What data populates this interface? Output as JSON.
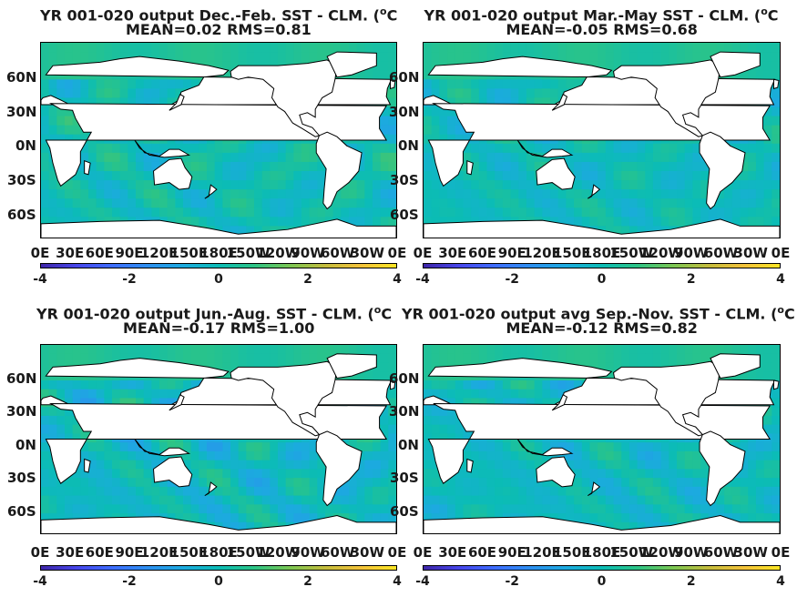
{
  "colormap": [
    "#3e26a8",
    "#4746eb",
    "#3e6dff",
    "#2d8ff0",
    "#1caadf",
    "#0bbcb6",
    "#2cc486",
    "#7ac653",
    "#c4bc3d",
    "#f3c23a",
    "#fae524"
  ],
  "land_color": "#ffffff",
  "chart_data": [
    {
      "type": "heatmap",
      "title_line1": "YR 001-020 output  Dec.-Feb. SST - CLM. (",
      "title_unit": "oC",
      "title_line2": "MEAN=0.02   RMS=0.81",
      "mean": 0.02,
      "rms": 0.81,
      "lat_ticks": [
        "60N",
        "30N",
        "0N",
        "30S",
        "60S"
      ],
      "lat_values": [
        60,
        30,
        0,
        -30,
        -60
      ],
      "lon_ticks": [
        "0E",
        "30E",
        "60E",
        "90E",
        "120E",
        "150E",
        "180E",
        "150W",
        "120W",
        "90W",
        "60W",
        "30W",
        "0E"
      ],
      "xlim": [
        0,
        360
      ],
      "ylim": [
        -80,
        90
      ],
      "clim": [
        -4,
        4
      ],
      "colorbar_ticks": [
        "-4",
        "-2",
        "0",
        "2",
        "4"
      ]
    },
    {
      "type": "heatmap",
      "title_line1": "YR 001-020 output Mar.-May SST - CLM. (",
      "title_unit": "oC",
      "title_line2": "MEAN=-0.05   RMS=0.68",
      "mean": -0.05,
      "rms": 0.68,
      "lat_ticks": [
        "60N",
        "30N",
        "0N",
        "30S",
        "60S"
      ],
      "lat_values": [
        60,
        30,
        0,
        -30,
        -60
      ],
      "lon_ticks": [
        "0E",
        "30E",
        "60E",
        "90E",
        "120E",
        "150E",
        "180E",
        "150W",
        "120W",
        "90W",
        "60W",
        "30W",
        "0E"
      ],
      "xlim": [
        0,
        360
      ],
      "ylim": [
        -80,
        90
      ],
      "clim": [
        -4,
        4
      ],
      "colorbar_ticks": [
        "-4",
        "-2",
        "0",
        "2",
        "4"
      ]
    },
    {
      "type": "heatmap",
      "title_line1": "YR 001-020 output Jun.-Aug. SST - CLM. (",
      "title_unit": "oC",
      "title_line2": "MEAN=-0.17   RMS=1.00",
      "mean": -0.17,
      "rms": 1.0,
      "lat_ticks": [
        "60N",
        "30N",
        "0N",
        "30S",
        "60S"
      ],
      "lat_values": [
        60,
        30,
        0,
        -30,
        -60
      ],
      "lon_ticks": [
        "0E",
        "30E",
        "60E",
        "90E",
        "120E",
        "150E",
        "180E",
        "150W",
        "120W",
        "90W",
        "60W",
        "30W",
        "0E"
      ],
      "xlim": [
        0,
        360
      ],
      "ylim": [
        -80,
        90
      ],
      "clim": [
        -4,
        4
      ],
      "colorbar_ticks": [
        "-4",
        "-2",
        "0",
        "2",
        "4"
      ]
    },
    {
      "type": "heatmap",
      "title_line1": "YR 001-020 output avg Sep.-Nov. SST - CLM. (",
      "title_unit": "oC",
      "title_line2": "MEAN=-0.12   RMS=0.82",
      "mean": -0.12,
      "rms": 0.82,
      "lat_ticks": [
        "60N",
        "30N",
        "0N",
        "30S",
        "60S"
      ],
      "lat_values": [
        60,
        30,
        0,
        -30,
        -60
      ],
      "lon_ticks": [
        "0E",
        "30E",
        "60E",
        "90E",
        "120E",
        "150E",
        "180E",
        "150W",
        "120W",
        "90W",
        "60W",
        "30W",
        "0E"
      ],
      "xlim": [
        0,
        360
      ],
      "ylim": [
        -80,
        90
      ],
      "clim": [
        -4,
        4
      ],
      "colorbar_ticks": [
        "-4",
        "-2",
        "0",
        "2",
        "4"
      ]
    }
  ]
}
